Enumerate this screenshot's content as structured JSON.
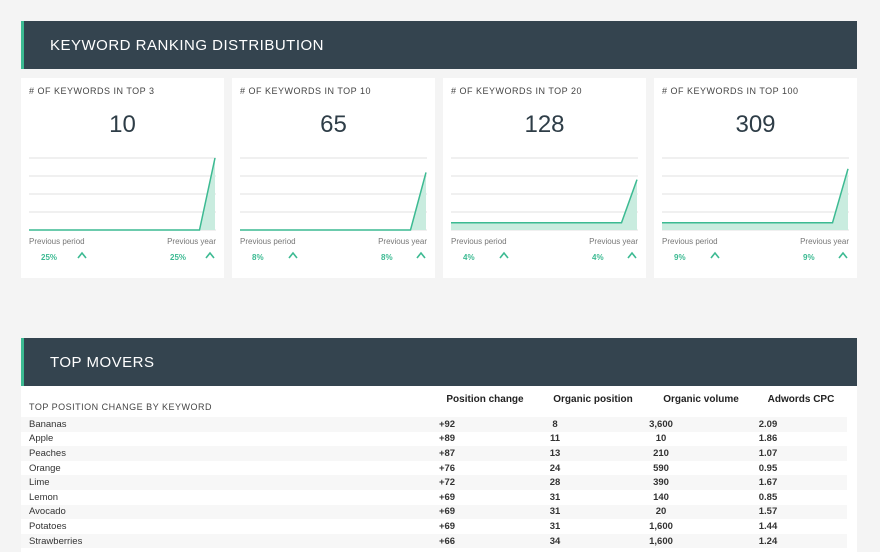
{
  "sections": {
    "ranking_title": "KEYWORD RANKING DISTRIBUTION",
    "movers_title": "TOP MOVERS"
  },
  "cards": [
    {
      "title": "# OF KEYWORDS IN TOP 3",
      "value": "10",
      "prev_label": "Previous period",
      "year_label": "Previous year",
      "prev_pct": "25%",
      "year_pct": "25%",
      "trend": [
        0,
        0,
        0,
        0,
        0,
        0,
        0,
        0,
        0,
        0,
        0,
        0,
        10
      ]
    },
    {
      "title": "# OF KEYWORDS IN TOP 10",
      "value": "65",
      "prev_label": "Previous period",
      "year_label": "Previous year",
      "prev_pct": "8%",
      "year_pct": "8%",
      "trend": [
        0,
        0,
        0,
        0,
        0,
        0,
        0,
        0,
        0,
        0,
        0,
        0,
        8
      ]
    },
    {
      "title": "# OF KEYWORDS IN TOP 20",
      "value": "128",
      "prev_label": "Previous period",
      "year_label": "Previous year",
      "prev_pct": "4%",
      "year_pct": "4%",
      "trend": [
        1,
        1,
        1,
        1,
        1,
        1,
        1,
        1,
        1,
        1,
        1,
        1,
        7
      ]
    },
    {
      "title": "# OF KEYWORDS IN TOP 100",
      "value": "309",
      "prev_label": "Previous period",
      "year_label": "Previous year",
      "prev_pct": "9%",
      "year_pct": "9%",
      "trend": [
        1,
        1,
        1,
        1,
        1,
        1,
        1,
        1,
        1,
        1,
        1,
        1,
        8.5
      ]
    }
  ],
  "colors": {
    "accent": "#3cba92",
    "header_bg": "#34444f",
    "area_fill": "#c9ecdf"
  },
  "movers": {
    "subtitle": "TOP POSITION CHANGE BY KEYWORD",
    "columns": [
      "Position change",
      "Organic position",
      "Organic volume",
      "Adwords CPC"
    ],
    "rows": [
      [
        "Bananas",
        "+92",
        "8",
        "3,600",
        "2.09"
      ],
      [
        "Apple",
        "+89",
        "11",
        "10",
        "1.86"
      ],
      [
        "Peaches",
        "+87",
        "13",
        "210",
        "1.07"
      ],
      [
        "Orange",
        "+76",
        "24",
        "590",
        "0.95"
      ],
      [
        "Lime",
        "+72",
        "28",
        "390",
        "1.67"
      ],
      [
        "Lemon",
        "+69",
        "31",
        "140",
        "0.85"
      ],
      [
        "Avocado",
        "+69",
        "31",
        "20",
        "1.57"
      ],
      [
        "Potatoes",
        "+69",
        "31",
        "1,600",
        "1.44"
      ],
      [
        "Strawberries",
        "+66",
        "34",
        "1,600",
        "1.24"
      ]
    ]
  }
}
